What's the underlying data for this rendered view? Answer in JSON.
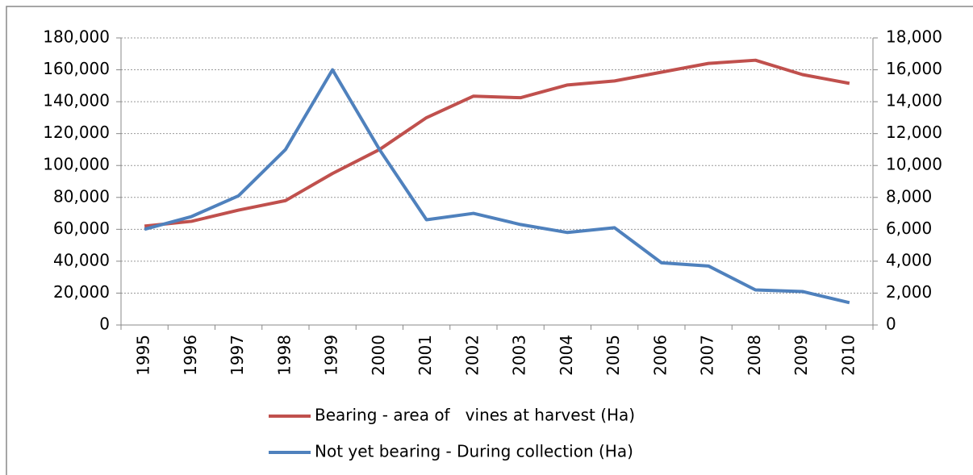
{
  "chart_data": {
    "type": "line",
    "categories": [
      "1995",
      "1996",
      "1997",
      "1998",
      "1999",
      "2000",
      "2001",
      "2002",
      "2003",
      "2004",
      "2005",
      "2006",
      "2007",
      "2008",
      "2009",
      "2010"
    ],
    "series": [
      {
        "name": "Bearing - area of   vines at harvest (Ha)",
        "color": "#c0504d",
        "values": [
          62000,
          65000,
          72000,
          78000,
          95000,
          110000,
          130000,
          143500,
          142500,
          150500,
          153000,
          158500,
          164000,
          166000,
          157000,
          151500
        ]
      },
      {
        "name": "Not yet bearing - During collection (Ha)",
        "color": "#4f81bd",
        "axis": "y2",
        "values": [
          6000,
          6800,
          8100,
          11000,
          16000,
          11000,
          6600,
          7000,
          6300,
          5800,
          6100,
          3900,
          3700,
          2200,
          2100,
          1400
        ]
      }
    ],
    "ylim": [
      0,
      180000
    ],
    "yticks": [
      0,
      {
        "value": 20000,
        "label": "20,000"
      },
      {
        "value": 40000,
        "label": "40,000"
      },
      {
        "value": 60000,
        "label": "60,000"
      },
      {
        "value": 80000,
        "label": "80,000"
      },
      {
        "value": 100000,
        "label": "100,000"
      },
      {
        "value": 120000,
        "label": "120,000"
      },
      {
        "value": 140000,
        "label": "140,000"
      },
      {
        "value": 160000,
        "label": "160,000"
      },
      {
        "value": 180000,
        "label": "180,000"
      }
    ],
    "y2lim": [
      0,
      18000
    ],
    "y2ticks": [
      0,
      {
        "value": 2000,
        "label": "2,000"
      },
      {
        "value": 4000,
        "label": "4,000"
      },
      {
        "value": 6000,
        "label": "6,000"
      },
      {
        "value": 8000,
        "label": "8,000"
      },
      {
        "value": 10000,
        "label": "10,000"
      },
      {
        "value": 12000,
        "label": "12,000"
      },
      {
        "value": 14000,
        "label": "14,000"
      },
      {
        "value": 16000,
        "label": "16,000"
      },
      {
        "value": 18000,
        "label": "18,000"
      }
    ],
    "grid": true,
    "legend": "bottom"
  }
}
